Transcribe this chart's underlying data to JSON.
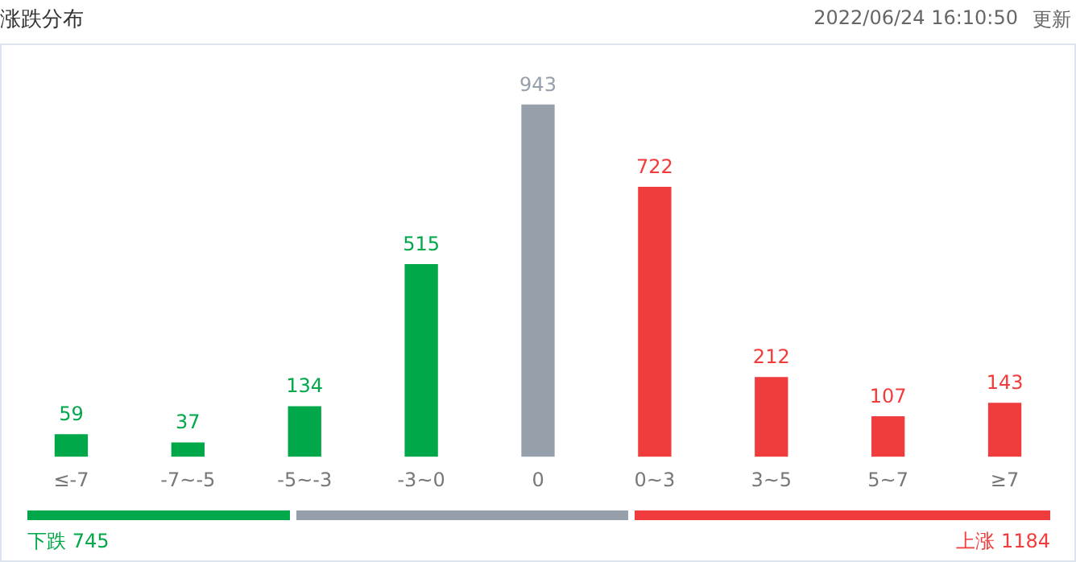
{
  "chart_data": {
    "type": "bar",
    "title": "涨跌分布",
    "subtitle": "2022/06/24 16:10:50",
    "categories": [
      "≤-7",
      "-7~-5",
      "-5~-3",
      "-3~0",
      "0",
      "0~3",
      "3~5",
      "5~7",
      "≥7"
    ],
    "values": [
      59,
      37,
      134,
      515,
      943,
      722,
      212,
      107,
      143
    ],
    "colors": [
      "#00a84a",
      "#00a84a",
      "#00a84a",
      "#00a84a",
      "#96a0aa",
      "#f03c3c",
      "#f03c3c",
      "#f03c3c",
      "#f03c3c"
    ],
    "data_labels": true,
    "grid": false,
    "legend": false,
    "tick_labels": "x",
    "annotations": [
      "更新",
      "下跌 745",
      "上涨 1184"
    ]
  }
}
